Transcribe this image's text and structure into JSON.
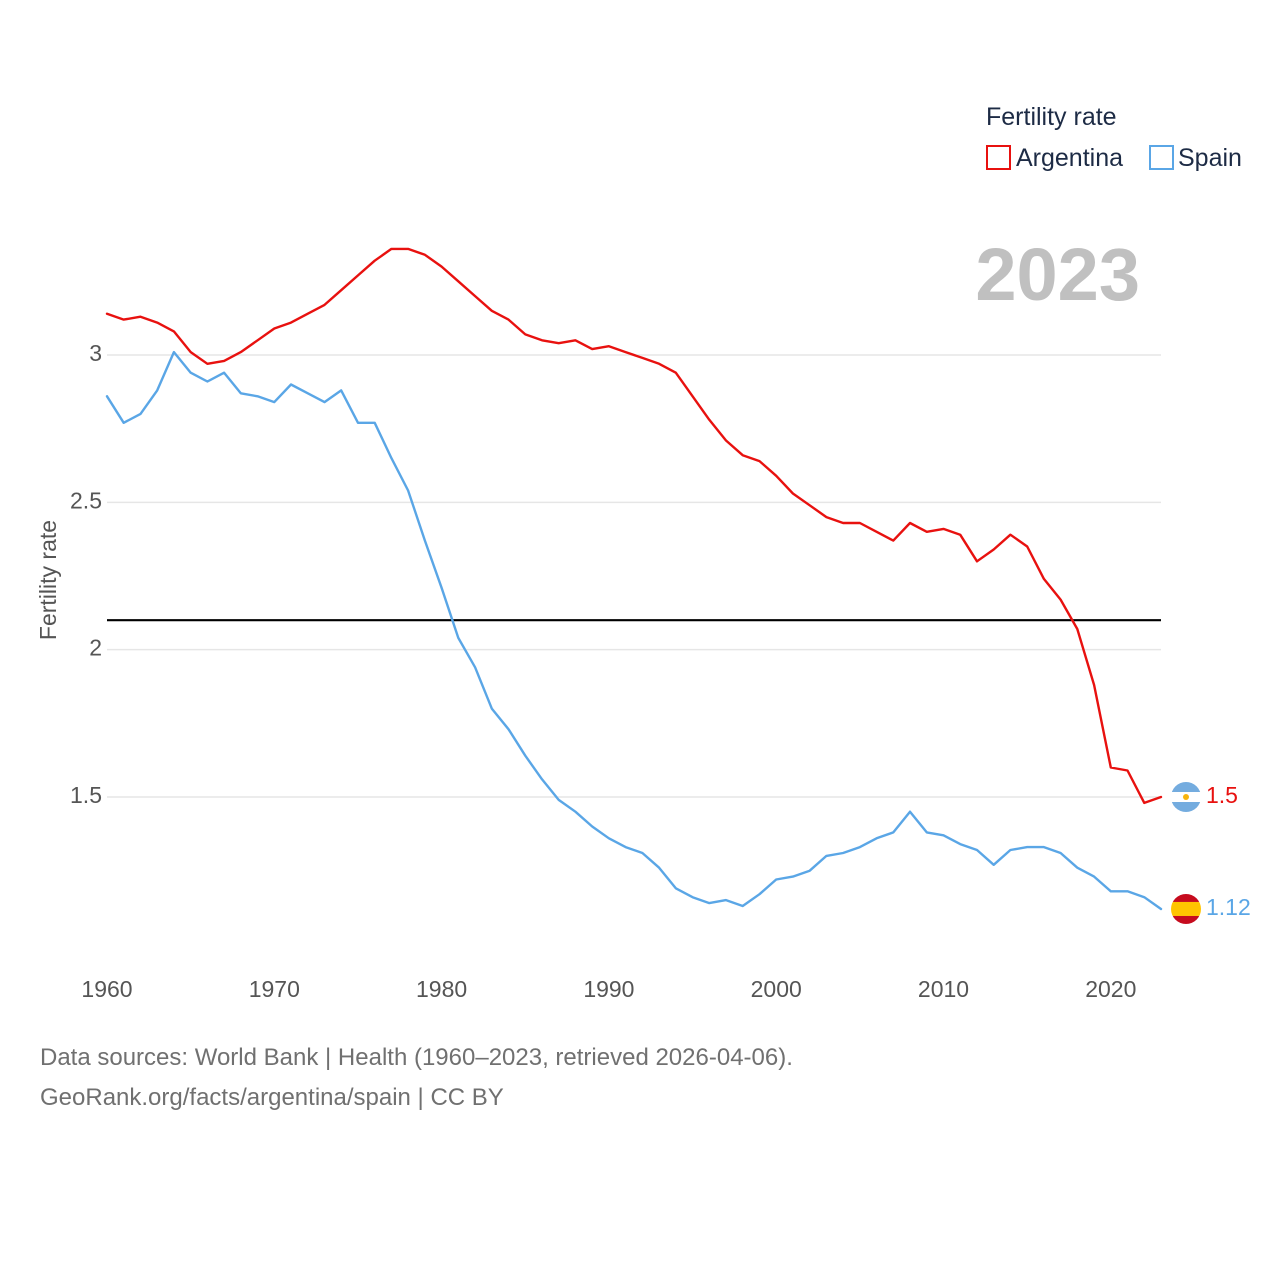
{
  "chart_data": {
    "type": "line",
    "title": "",
    "ylabel": "Fertility rate",
    "xlabel": "",
    "xlim": [
      1960,
      2023
    ],
    "ylim": [
      0.9,
      3.5
    ],
    "xticks": [
      "1960",
      "1970",
      "1980",
      "1990",
      "2000",
      "2010",
      "2020"
    ],
    "yticks": [
      "1.5",
      "2",
      "2.5",
      "3"
    ],
    "grid": true,
    "reference_line": {
      "value": 2.1,
      "color": "#000000"
    },
    "year_display": "2023",
    "legend": {
      "title": "Fertility rate",
      "position": "top-right"
    },
    "x": [
      1960,
      1961,
      1962,
      1963,
      1964,
      1965,
      1966,
      1967,
      1968,
      1969,
      1970,
      1971,
      1972,
      1973,
      1974,
      1975,
      1976,
      1977,
      1978,
      1979,
      1980,
      1981,
      1982,
      1983,
      1984,
      1985,
      1986,
      1987,
      1988,
      1989,
      1990,
      1991,
      1992,
      1993,
      1994,
      1995,
      1996,
      1997,
      1998,
      1999,
      2000,
      2001,
      2002,
      2003,
      2004,
      2005,
      2006,
      2007,
      2008,
      2009,
      2010,
      2011,
      2012,
      2013,
      2014,
      2015,
      2016,
      2017,
      2018,
      2019,
      2020,
      2021,
      2022,
      2023
    ],
    "series": [
      {
        "name": "Argentina",
        "color": "#e8110f",
        "end_label": "1.5",
        "flag": "argentina-flag",
        "values": [
          3.14,
          3.12,
          3.13,
          3.11,
          3.08,
          3.01,
          2.97,
          2.98,
          3.01,
          3.05,
          3.09,
          3.11,
          3.14,
          3.17,
          3.22,
          3.27,
          3.32,
          3.36,
          3.36,
          3.34,
          3.3,
          3.25,
          3.2,
          3.15,
          3.12,
          3.07,
          3.05,
          3.04,
          3.05,
          3.02,
          3.03,
          3.01,
          2.99,
          2.97,
          2.94,
          2.86,
          2.78,
          2.71,
          2.66,
          2.64,
          2.59,
          2.53,
          2.49,
          2.45,
          2.43,
          2.43,
          2.4,
          2.37,
          2.43,
          2.4,
          2.41,
          2.39,
          2.3,
          2.34,
          2.39,
          2.35,
          2.24,
          2.17,
          2.07,
          1.88,
          1.6,
          1.59,
          1.48,
          1.5
        ]
      },
      {
        "name": "Spain",
        "color": "#5aa6e6",
        "end_label": "1.12",
        "flag": "spain-flag",
        "values": [
          2.86,
          2.77,
          2.8,
          2.88,
          3.01,
          2.94,
          2.91,
          2.94,
          2.87,
          2.86,
          2.84,
          2.9,
          2.87,
          2.84,
          2.88,
          2.77,
          2.77,
          2.65,
          2.54,
          2.37,
          2.21,
          2.04,
          1.94,
          1.8,
          1.73,
          1.64,
          1.56,
          1.49,
          1.45,
          1.4,
          1.36,
          1.33,
          1.31,
          1.26,
          1.19,
          1.16,
          1.14,
          1.15,
          1.13,
          1.17,
          1.22,
          1.23,
          1.25,
          1.3,
          1.31,
          1.33,
          1.36,
          1.38,
          1.45,
          1.38,
          1.37,
          1.34,
          1.32,
          1.27,
          1.32,
          1.33,
          1.33,
          1.31,
          1.26,
          1.23,
          1.18,
          1.18,
          1.16,
          1.12
        ]
      }
    ]
  },
  "footer": {
    "line1": "Data sources: World Bank | Health (1960–2023, retrieved 2026-04-06).",
    "line2": "GeoRank.org/facts/argentina/spain | CC BY"
  }
}
